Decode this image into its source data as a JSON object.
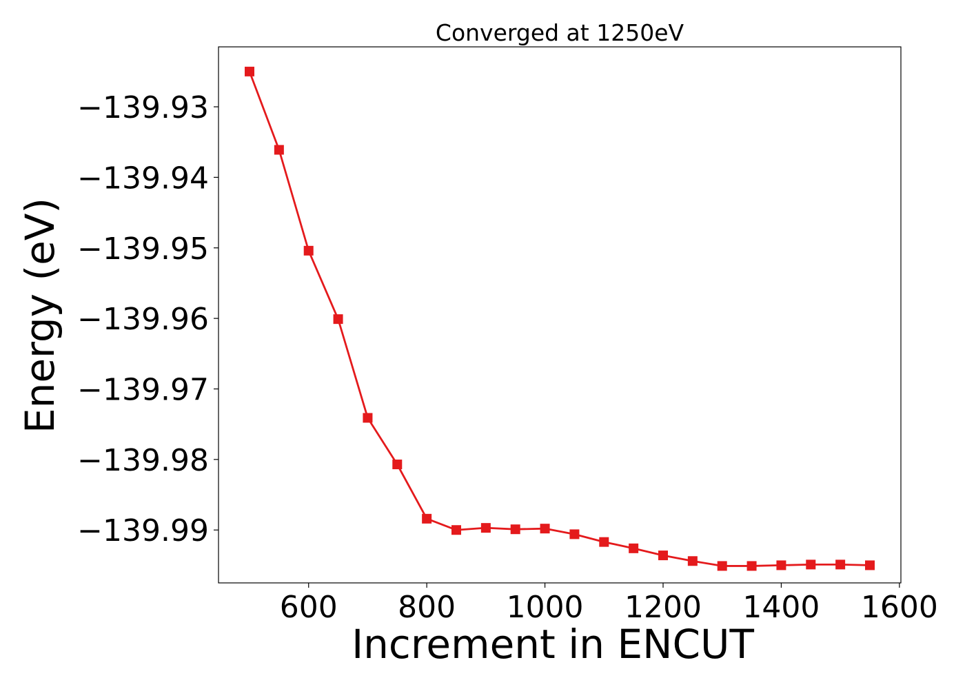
{
  "chart_data": {
    "type": "line",
    "title": "Converged at 1250eV",
    "xlabel": "Increment in ENCUT",
    "ylabel": "Energy (eV)",
    "xlim": [
      447.5,
      1602.5
    ],
    "ylim": [
      -139.9975,
      -139.9215
    ],
    "xticks": [
      600,
      800,
      1000,
      1200,
      1400,
      1600
    ],
    "yticks": [
      -139.93,
      -139.94,
      -139.95,
      -139.96,
      -139.97,
      -139.98,
      -139.99
    ],
    "xtick_labels": [
      "600",
      "800",
      "1000",
      "1200",
      "1400",
      "1600"
    ],
    "ytick_labels": [
      "−139.93",
      "−139.94",
      "−139.95",
      "−139.96",
      "−139.97",
      "−139.98",
      "−139.99"
    ],
    "grid": false,
    "series": [
      {
        "color": "#e41a1c",
        "marker": "square",
        "x": [
          500,
          550,
          600,
          650,
          700,
          750,
          800,
          850,
          900,
          950,
          1000,
          1050,
          1100,
          1150,
          1200,
          1250,
          1300,
          1350,
          1400,
          1450,
          1500,
          1550
        ],
        "y": [
          -139.925,
          -139.9361,
          -139.9504,
          -139.9601,
          -139.9741,
          -139.9807,
          -139.9884,
          -139.99,
          -139.9897,
          -139.9899,
          -139.9898,
          -139.9906,
          -139.9917,
          -139.9926,
          -139.9936,
          -139.9944,
          -139.9951,
          -139.9951,
          -139.995,
          -139.9949,
          -139.9949,
          -139.995
        ]
      }
    ]
  }
}
